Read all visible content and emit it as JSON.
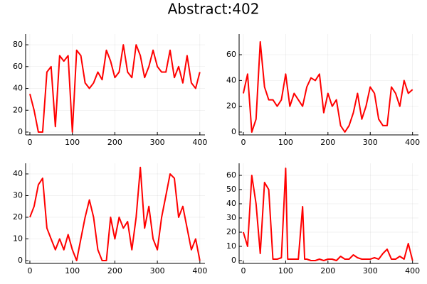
{
  "title": "Abstract:402",
  "chart_data": [
    {
      "type": "line",
      "color": "#ff0000",
      "grid": true,
      "x": [
        0,
        10,
        20,
        30,
        40,
        50,
        60,
        70,
        80,
        90,
        100,
        110,
        120,
        130,
        140,
        150,
        160,
        170,
        180,
        190,
        200,
        210,
        220,
        230,
        240,
        250,
        260,
        270,
        280,
        290,
        300,
        310,
        320,
        330,
        340,
        350,
        360,
        370,
        380,
        390,
        400
      ],
      "values": [
        35,
        20,
        0,
        0,
        55,
        60,
        5,
        70,
        65,
        70,
        0,
        75,
        70,
        45,
        40,
        45,
        55,
        48,
        75,
        65,
        50,
        55,
        80,
        55,
        50,
        80,
        70,
        50,
        60,
        75,
        60,
        55,
        55,
        75,
        50,
        60,
        45,
        70,
        45,
        40,
        55
      ],
      "xlim": [
        -10,
        412
      ],
      "ylim": [
        -2.6,
        89.8
      ],
      "xticks": [
        0,
        100,
        200,
        300,
        400
      ],
      "yticks": [
        0,
        20,
        40,
        60,
        80
      ]
    },
    {
      "type": "line",
      "color": "#ff0000",
      "grid": true,
      "x": [
        0,
        10,
        20,
        30,
        40,
        50,
        60,
        70,
        80,
        90,
        100,
        110,
        120,
        130,
        140,
        150,
        160,
        170,
        180,
        190,
        200,
        210,
        220,
        230,
        240,
        250,
        260,
        270,
        280,
        290,
        300,
        310,
        320,
        330,
        340,
        350,
        360,
        370,
        380,
        390,
        400
      ],
      "values": [
        30,
        45,
        0,
        10,
        70,
        35,
        25,
        25,
        20,
        25,
        45,
        20,
        30,
        25,
        20,
        35,
        42,
        40,
        45,
        15,
        30,
        20,
        25,
        5,
        0,
        5,
        15,
        30,
        10,
        20,
        35,
        30,
        10,
        5,
        5,
        35,
        30,
        20,
        40,
        30,
        33
      ],
      "xlim": [
        -10,
        414
      ],
      "ylim": [
        -2.2,
        76
      ],
      "xticks": [
        0,
        100,
        200,
        300,
        400
      ],
      "yticks": [
        0,
        20,
        40,
        60
      ]
    },
    {
      "type": "line",
      "color": "#ff0000",
      "grid": true,
      "x": [
        0,
        10,
        20,
        30,
        40,
        50,
        60,
        70,
        80,
        90,
        100,
        110,
        120,
        130,
        140,
        150,
        160,
        170,
        180,
        190,
        200,
        210,
        220,
        230,
        240,
        250,
        260,
        270,
        280,
        290,
        300,
        310,
        320,
        330,
        340,
        350,
        360,
        370,
        380,
        390,
        400
      ],
      "values": [
        20,
        25,
        35,
        38,
        15,
        10,
        5,
        10,
        5,
        12,
        5,
        0,
        10,
        20,
        28,
        20,
        5,
        0,
        0,
        20,
        10,
        20,
        15,
        18,
        5,
        20,
        43,
        15,
        25,
        10,
        5,
        20,
        30,
        40,
        38,
        20,
        25,
        15,
        5,
        10,
        0
      ],
      "xlim": [
        -10,
        412
      ],
      "ylim": [
        -1.3,
        44.9
      ],
      "xticks": [
        0,
        100,
        200,
        300,
        400
      ],
      "yticks": [
        0,
        10,
        20,
        30,
        40
      ]
    },
    {
      "type": "line",
      "color": "#ff0000",
      "grid": true,
      "x": [
        0,
        10,
        20,
        30,
        40,
        50,
        60,
        70,
        80,
        90,
        100,
        105,
        110,
        120,
        130,
        140,
        145,
        150,
        160,
        170,
        180,
        190,
        200,
        210,
        220,
        230,
        240,
        250,
        260,
        270,
        280,
        290,
        300,
        310,
        320,
        330,
        340,
        350,
        360,
        370,
        380,
        390,
        400
      ],
      "values": [
        20,
        10,
        60,
        40,
        5,
        55,
        50,
        1,
        1,
        2,
        65,
        1,
        1,
        1,
        1,
        38,
        1,
        1,
        0,
        0,
        1,
        0,
        1,
        1,
        0,
        3,
        1,
        1,
        4,
        2,
        1,
        1,
        1,
        2,
        1,
        5,
        8,
        1,
        1,
        3,
        1,
        12,
        0
      ],
      "xlim": [
        -10,
        414
      ],
      "ylim": [
        -2,
        68.5
      ],
      "xticks": [
        0,
        100,
        200,
        300,
        400
      ],
      "yticks": [
        0,
        10,
        20,
        30,
        40,
        50,
        60
      ]
    }
  ]
}
